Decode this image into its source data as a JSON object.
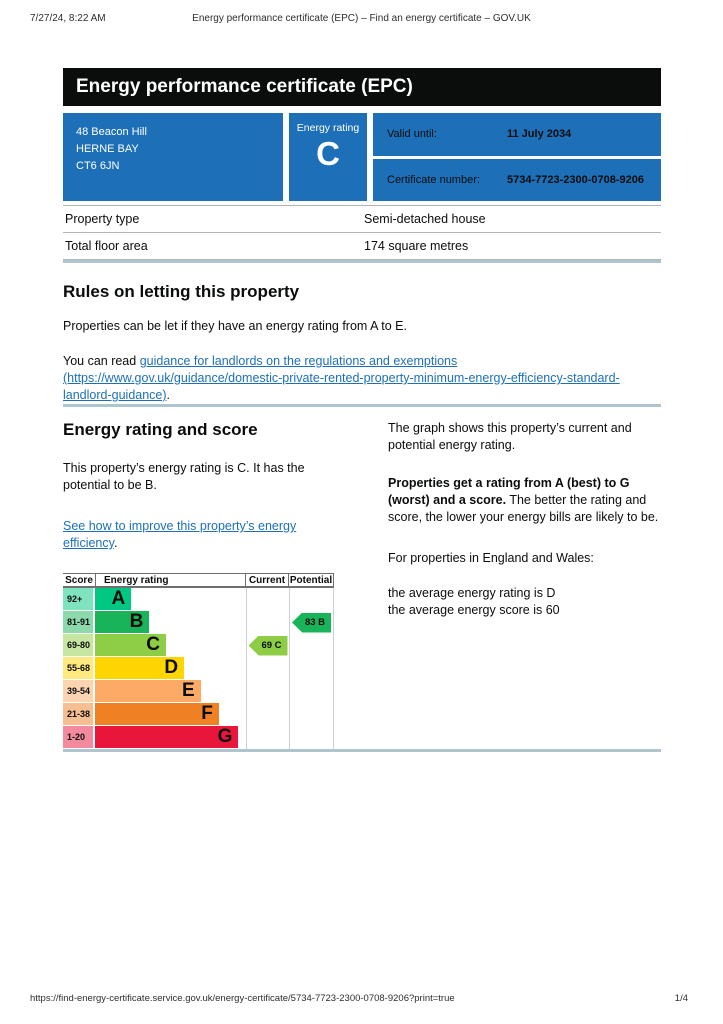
{
  "meta": {
    "datetime": "7/27/24, 8:22 AM",
    "doc_title": "Energy performance certificate (EPC) – Find an energy certificate – GOV.UK"
  },
  "banner": {
    "title": "Energy performance certificate (EPC)"
  },
  "summary": {
    "address_lines": [
      "48 Beacon Hill",
      "HERNE BAY",
      "CT6 6JN"
    ],
    "energy_rating_label": "Energy rating",
    "energy_rating": "C",
    "valid_until_label": "Valid until:",
    "valid_until": "11 July 2034",
    "certificate_number_label": "Certificate number:",
    "certificate_number": "5734-7723-2300-0708-9206"
  },
  "property_table": {
    "rows": [
      {
        "label": "Property type",
        "value": "Semi-detached house"
      },
      {
        "label": "Total floor area",
        "value": "174 square metres"
      }
    ]
  },
  "rules": {
    "heading": "Rules on letting this property",
    "p1": "Properties can be let if they have an energy rating from A to E.",
    "p2_prefix": "You can read ",
    "p2_link": "guidance for landlords on the regulations and exemptions (https://www.gov.uk/guidance/domestic-private-rented-property-minimum-energy-efficiency-standard-landlord-guidance)",
    "p2_suffix": "."
  },
  "rating_section": {
    "heading": "Energy rating and score",
    "p1": "This property’s energy rating is C. It has the potential to be B.",
    "link": "See how to improve this property’s energy efficiency",
    "link_suffix": ".",
    "right": {
      "p1": "The graph shows this property’s current and potential energy rating.",
      "p2_bold": "Properties get a rating from A (best) to G (worst) and a score.",
      "p2_rest": " The better the rating and score, the lower your energy bills are likely to be.",
      "p3": "For properties in England and Wales:",
      "p4_line1": "the average energy rating is D",
      "p4_line2": "the average energy score is 60"
    }
  },
  "chart_data": {
    "type": "epc-rating-graph",
    "title": "Energy rating and score graph",
    "headers": {
      "score": "Score",
      "rating": "Energy rating",
      "current": "Current",
      "potential": "Potential"
    },
    "bands": [
      {
        "score": "92+",
        "letter": "A",
        "color": "#00c781",
        "tint": "#7fe3c0",
        "width_pct": 24
      },
      {
        "score": "81-91",
        "letter": "B",
        "color": "#19b459",
        "tint": "#8cd9ac",
        "width_pct": 36
      },
      {
        "score": "69-80",
        "letter": "C",
        "color": "#8dce46",
        "tint": "#c6e6a2",
        "width_pct": 47
      },
      {
        "score": "55-68",
        "letter": "D",
        "color": "#ffd500",
        "tint": "#ffea7f",
        "width_pct": 59
      },
      {
        "score": "39-54",
        "letter": "E",
        "color": "#fcaa65",
        "tint": "#fdd4b2",
        "width_pct": 70
      },
      {
        "score": "21-38",
        "letter": "F",
        "color": "#ef8023",
        "tint": "#f7bf91",
        "width_pct": 82
      },
      {
        "score": "1-20",
        "letter": "G",
        "color": "#e9153b",
        "tint": "#f48a9d",
        "width_pct": 95
      }
    ],
    "current": {
      "value": 69,
      "letter": "C",
      "band_index": 2,
      "label": "69 C",
      "color": "#8dce46"
    },
    "potential": {
      "value": 83,
      "letter": "B",
      "band_index": 1,
      "label": "83 B",
      "color": "#19b459"
    }
  },
  "footer": {
    "url": "https://find-energy-certificate.service.gov.uk/energy-certificate/5734-7723-2300-0708-9206?print=true",
    "page": "1/4"
  },
  "colors": {
    "govuk_blue": "#1d70b8",
    "banner_bg": "#0b0c0c",
    "link": "#1d70b8",
    "section_divider": "#aec4cf",
    "table_border": "#b1b4b6"
  }
}
